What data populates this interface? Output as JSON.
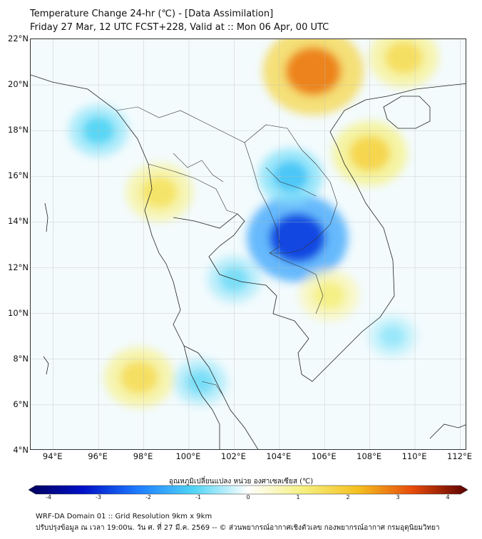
{
  "header": {
    "title_line1": "Temperature Change 24-hr (℃) - [Data Assimilation]",
    "title_line2": "Friday 27 Mar, 12 UTC FCST+228, Valid at :: Mon 06 Apr, 00 UTC"
  },
  "map": {
    "lat_labels": [
      "22°N",
      "20°N",
      "18°N",
      "16°N",
      "14°N",
      "12°N",
      "10°N",
      "8°N",
      "6°N",
      "4°N"
    ],
    "lon_labels": [
      "94°E",
      "96°E",
      "98°E",
      "100°E",
      "102°E",
      "104°E",
      "106°E",
      "108°E",
      "110°E",
      "112°E"
    ],
    "lat_range": [
      4,
      22
    ],
    "lon_range": [
      93,
      112.3
    ],
    "features": [
      {
        "name": "cold-core-cambodia",
        "lon": 104.8,
        "lat": 13.3,
        "value": -2.6
      },
      {
        "name": "cold-laos-north",
        "lon": 104.5,
        "lat": 16.0,
        "value": -1.2
      },
      {
        "name": "cold-gulf-of-thailand",
        "lon": 102.0,
        "lat": 11.5,
        "value": -0.8
      },
      {
        "name": "cold-myanmar-west",
        "lon": 96.0,
        "lat": 18.0,
        "value": -1.0
      },
      {
        "name": "cold-south-china-sea",
        "lon": 109.0,
        "lat": 9.0,
        "value": -0.6
      },
      {
        "name": "cold-malay",
        "lon": 100.5,
        "lat": 7.0,
        "value": -0.8
      },
      {
        "name": "warm-hanoi",
        "lon": 105.5,
        "lat": 20.6,
        "value": 2.6
      },
      {
        "name": "warm-vietnam-central",
        "lon": 108.0,
        "lat": 17.0,
        "value": 1.6
      },
      {
        "name": "warm-thailand-west",
        "lon": 98.7,
        "lat": 15.3,
        "value": 1.3
      },
      {
        "name": "warm-andaman",
        "lon": 97.8,
        "lat": 7.2,
        "value": 1.4
      },
      {
        "name": "warm-south-china",
        "lon": 109.5,
        "lat": 21.2,
        "value": 1.4
      },
      {
        "name": "warm-mekong-delta",
        "lon": 106.2,
        "lat": 10.8,
        "value": 1.0
      }
    ]
  },
  "colorbar": {
    "title": "อุณหภูมิเปลี่ยนแปลง หน่วย องศาเซลเซียส (℃)",
    "ticks": [
      "-4",
      "-3",
      "-2",
      "-1",
      "0",
      "1",
      "2",
      "3",
      "4"
    ],
    "range": [
      -4,
      4
    ],
    "stops": [
      "#00005a",
      "#0010c8",
      "#1e7dff",
      "#4fd4f5",
      "#ffffff",
      "#f5f080",
      "#f5c020",
      "#e64a0a",
      "#5a0000"
    ]
  },
  "footer": {
    "line1": "WRF-DA Domain 01 :: Grid Resolution 9km x 9km",
    "line2": "ปรับปรุงข้อมูล ณ เวลา 19:00น. วัน ศ. ที่ 27 มี.ค. 2569 -- © ส่วนพยากรณ์อากาศเชิงตัวเลข กองพยากรณ์อากาศ กรมอุตุนิยมวิทยา"
  }
}
